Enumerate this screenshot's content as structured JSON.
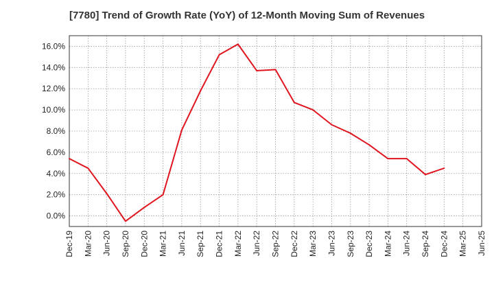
{
  "chart_data": {
    "type": "line",
    "title": "[7780]  Trend of Growth Rate (YoY) of 12-Month Moving Sum of Revenues",
    "xlabel": "",
    "ylabel": "",
    "x_ticks": [
      "Dec-19",
      "Mar-20",
      "Jun-20",
      "Sep-20",
      "Dec-20",
      "Mar-21",
      "Jun-21",
      "Sep-21",
      "Dec-21",
      "Mar-22",
      "Jun-22",
      "Sep-22",
      "Dec-22",
      "Mar-23",
      "Jun-23",
      "Sep-23",
      "Dec-23",
      "Mar-24",
      "Jun-24",
      "Sep-24",
      "Dec-24",
      "Mar-25",
      "Jun-25"
    ],
    "y_ticks": [
      "0.0%",
      "2.0%",
      "4.0%",
      "6.0%",
      "8.0%",
      "10.0%",
      "12.0%",
      "14.0%",
      "16.0%"
    ],
    "ylim": [
      -1.0,
      17.0
    ],
    "grid": true,
    "series": [
      {
        "color": "#e0141e",
        "values": [
          5.4,
          4.5,
          2.1,
          -0.5,
          0.8,
          2.0,
          8.1,
          11.8,
          15.2,
          16.2,
          13.7,
          13.8,
          10.7,
          10.0,
          8.6,
          7.8,
          6.7,
          5.4,
          5.4,
          3.9,
          4.5
        ]
      }
    ]
  }
}
